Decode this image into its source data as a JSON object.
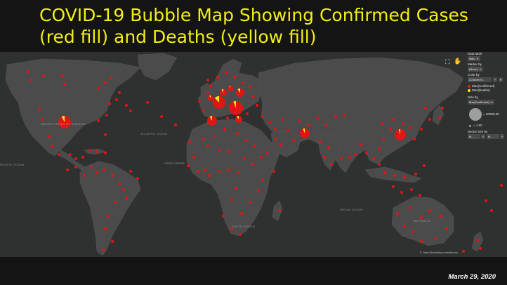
{
  "title": "COVID-19 Bubble Map Showing Confirmed Cases (red fill) and Deaths (yellow fill)",
  "date": "March 29, 2020",
  "map": {
    "ocean_labels": [
      {
        "name": "atlantic",
        "text": "ATLANTIC OCEAN"
      },
      {
        "name": "indian",
        "text": "INDIAN OCEAN"
      },
      {
        "name": "pacific",
        "text": "PACIFIC OCEAN"
      }
    ],
    "region_labels": [
      {
        "name": "united-states",
        "text": "UNITED STATES OF AMERICA"
      },
      {
        "name": "cabo-verde",
        "text": "CABO VERDE"
      },
      {
        "name": "australia",
        "text": "AUSTRALIA"
      },
      {
        "name": "south-africa",
        "text": "SOUTH AFRICA"
      }
    ],
    "attribution": "© OpenStreetMap contributors",
    "toolbar": [
      "zoom-box-icon",
      "pan-hand-icon"
    ],
    "colors": {
      "land": "#4b4b4b",
      "sea": "#2f3030",
      "confirmed": "#e01515",
      "deaths": "#f5e61a",
      "title": "#f2ef12"
    }
  },
  "panel": {
    "data_label": "Data label",
    "data_value": "Italic",
    "marker_label": "Marker by",
    "marker_value": "(None)",
    "color_label": "Color by",
    "color_value": "(Column N...",
    "legend": [
      {
        "name": "confirmed",
        "text": "Max(Confirmed)",
        "color": "#e01515"
      },
      {
        "name": "deaths",
        "text": "Max(Deaths)",
        "color": "#f5e61a"
      }
    ],
    "size_label": "Size by",
    "size_value": "Max(Confirmed)",
    "size_large": "= 40000.00",
    "size_small": "= 1.00",
    "sector_label": "Sector size by",
    "sector_value_a": "M...",
    "sector_value_b": "M..."
  }
}
